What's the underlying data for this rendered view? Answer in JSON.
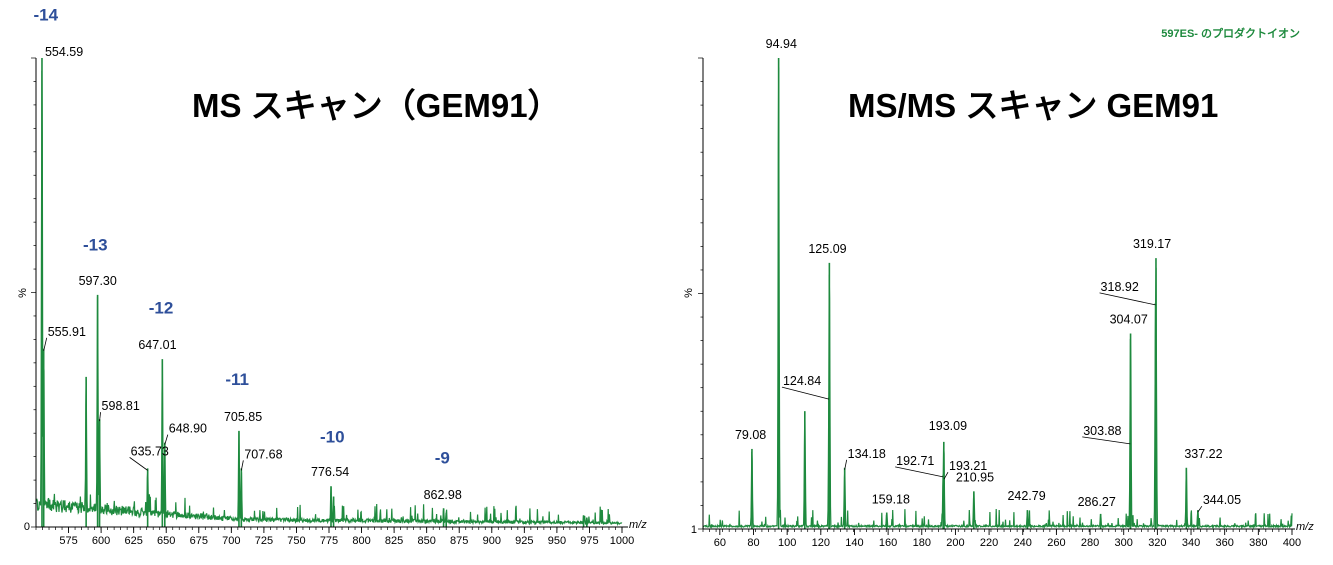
{
  "colors": {
    "trace": "#1e8a3e",
    "charge": "#2e4f9a",
    "note": "#1e8a3e"
  },
  "chart_data": [
    {
      "type": "line",
      "title": "MS スキャン（GEM91）",
      "x_unit": "m/z",
      "y_unit": "%",
      "y_tick_labels": [
        "0"
      ],
      "xlim": [
        550,
        1000
      ],
      "ylim": [
        0,
        100
      ],
      "x_ticks": [
        575,
        600,
        625,
        650,
        675,
        700,
        725,
        750,
        775,
        800,
        825,
        850,
        875,
        900,
        925,
        950,
        975,
        1000
      ],
      "peaks": [
        {
          "x": 554.59,
          "y": 100,
          "label": "554.59"
        },
        {
          "x": 555.91,
          "y": 38,
          "label": "555.91"
        },
        {
          "x": 588.5,
          "y": 32,
          "label": ""
        },
        {
          "x": 597.3,
          "y": 49.5,
          "label": "597.30"
        },
        {
          "x": 598.81,
          "y": 23,
          "label": "598.81"
        },
        {
          "x": 635.73,
          "y": 12.5,
          "label": "635.73"
        },
        {
          "x": 647.01,
          "y": 35.8,
          "label": "647.01"
        },
        {
          "x": 648.9,
          "y": 18,
          "label": "648.90"
        },
        {
          "x": 705.85,
          "y": 20.5,
          "label": "705.85"
        },
        {
          "x": 707.68,
          "y": 12.5,
          "label": "707.68"
        },
        {
          "x": 776.54,
          "y": 8.7,
          "label": "776.54"
        },
        {
          "x": 778.5,
          "y": 6.5,
          "label": ""
        },
        {
          "x": 862.98,
          "y": 4,
          "label": "862.98"
        },
        {
          "x": 865.0,
          "y": 3,
          "label": ""
        },
        {
          "x": 970.5,
          "y": 2.5,
          "label": ""
        },
        {
          "x": 973.0,
          "y": 2,
          "label": ""
        }
      ],
      "annotations": [
        {
          "text": "-14",
          "x": 557.5,
          "y": 108
        },
        {
          "text": "-13",
          "x": 595.5,
          "y": 59
        },
        {
          "text": "-12",
          "x": 646.0,
          "y": 45.5
        },
        {
          "text": "-11",
          "x": 704.5,
          "y": 30.3
        },
        {
          "text": "-10",
          "x": 777.5,
          "y": 18
        },
        {
          "text": "-9",
          "x": 862.0,
          "y": 13.5
        }
      ]
    },
    {
      "type": "line",
      "title": "MS/MS スキャン GEM91",
      "note": "597ES- のプロダクトイオン",
      "x_unit": "m/z",
      "y_unit": "%",
      "y_tick_labels": [
        "1"
      ],
      "xlim": [
        50,
        400
      ],
      "ylim": [
        0,
        100
      ],
      "x_ticks": [
        60,
        80,
        100,
        120,
        140,
        160,
        180,
        200,
        220,
        240,
        260,
        280,
        300,
        320,
        340,
        360,
        380,
        400
      ],
      "peaks": [
        {
          "x": 79.08,
          "y": 17,
          "label": "79.08"
        },
        {
          "x": 94.94,
          "y": 100,
          "label": "94.94"
        },
        {
          "x": 110.5,
          "y": 25,
          "label": ""
        },
        {
          "x": 125.09,
          "y": 56.5,
          "label": "125.09"
        },
        {
          "x": 124.84,
          "y": 28,
          "label": "124.84"
        },
        {
          "x": 134.18,
          "y": 13,
          "label": "134.18"
        },
        {
          "x": 159.18,
          "y": 3.5,
          "label": "159.18"
        },
        {
          "x": 192.71,
          "y": 11.5,
          "label": "192.71"
        },
        {
          "x": 193.09,
          "y": 18.5,
          "label": "193.09"
        },
        {
          "x": 193.21,
          "y": 11,
          "label": "193.21"
        },
        {
          "x": 210.95,
          "y": 8,
          "label": "210.95"
        },
        {
          "x": 242.79,
          "y": 4,
          "label": "242.79"
        },
        {
          "x": 286.27,
          "y": 3.2,
          "label": "286.27"
        },
        {
          "x": 303.88,
          "y": 18.5,
          "label": "303.88"
        },
        {
          "x": 304.07,
          "y": 41.5,
          "label": "304.07"
        },
        {
          "x": 318.92,
          "y": 48,
          "label": "318.92"
        },
        {
          "x": 319.17,
          "y": 57.5,
          "label": "319.17"
        },
        {
          "x": 337.22,
          "y": 13,
          "label": "337.22"
        },
        {
          "x": 344.05,
          "y": 4,
          "label": "344.05"
        }
      ]
    }
  ]
}
